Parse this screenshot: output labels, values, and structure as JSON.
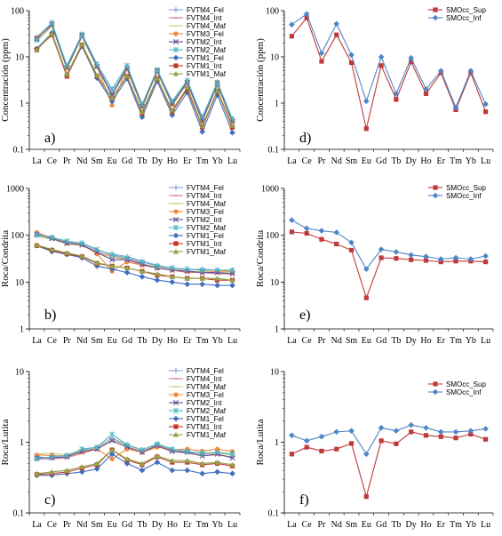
{
  "categories": [
    "La",
    "Ce",
    "Pr",
    "Nd",
    "Sm",
    "Eu",
    "Gd",
    "Tb",
    "Dy",
    "Ho",
    "Er",
    "Tm",
    "Yb",
    "Lu"
  ],
  "colors": {
    "FVTM4_Fel": "#8da7d8",
    "FVTM4_Int": "#d77e7e",
    "FVTM4_Maf": "#c4d08a",
    "FVTM3_Fel": "#f08a3c",
    "FVTM2_Int": "#6a4c9c",
    "FVTM2_Maf": "#4cb7c3",
    "FVTM1_Fel": "#3f6fc0",
    "FVTM1_Int": "#c0392b",
    "FVTM1_Maf": "#8fa64a",
    "SMOcc_Sup": "#c0393b",
    "SMOcc_Inf": "#4f86c6"
  },
  "chart_data": [
    {
      "type": "line",
      "panel_label": "a)",
      "ylabel": "Concentración (ppm)",
      "log_scale": true,
      "ylim": [
        0.1,
        100
      ],
      "yticks": [
        "0.1",
        "1",
        "10",
        "100"
      ],
      "legend_position": "top-right",
      "series": [
        {
          "name": "FVTM4_Fel",
          "marker": "plus",
          "values": [
            27,
            55,
            6.2,
            30,
            6.5,
            1.7,
            6.0,
            0.9,
            5.2,
            1.0,
            3.0,
            0.45,
            2.6,
            0.42
          ]
        },
        {
          "name": "FVTM4_Int",
          "marker": "dash",
          "values": [
            24,
            48,
            5.6,
            28,
            6.0,
            1.5,
            5.5,
            0.8,
            4.8,
            0.95,
            2.8,
            0.42,
            2.5,
            0.4
          ]
        },
        {
          "name": "FVTM4_Maf",
          "marker": "dash",
          "values": [
            22,
            45,
            5.4,
            27,
            5.8,
            1.5,
            5.3,
            0.8,
            4.7,
            0.9,
            2.7,
            0.4,
            2.4,
            0.38
          ]
        },
        {
          "name": "FVTM3_Fel",
          "marker": "circle",
          "values": [
            26,
            52,
            5.8,
            30,
            6.2,
            0.9,
            5.6,
            0.85,
            5.0,
            0.95,
            2.9,
            0.4,
            2.9,
            0.44
          ]
        },
        {
          "name": "FVTM2_Int",
          "marker": "x",
          "values": [
            25,
            50,
            5.8,
            29,
            6.2,
            1.5,
            5.8,
            0.85,
            5.0,
            0.95,
            2.8,
            0.42,
            2.6,
            0.4
          ]
        },
        {
          "name": "FVTM2_Maf",
          "marker": "star",
          "values": [
            23,
            55,
            6.5,
            31,
            7.0,
            2.0,
            6.5,
            0.95,
            5.3,
            1.1,
            3.1,
            0.5,
            2.8,
            0.46
          ]
        },
        {
          "name": "FVTM1_Fel",
          "marker": "diamond",
          "values": [
            15,
            33,
            4.0,
            17,
            3.5,
            1.1,
            3.4,
            0.5,
            3.0,
            0.55,
            1.7,
            0.24,
            1.5,
            0.23
          ]
        },
        {
          "name": "FVTM1_Int",
          "marker": "square",
          "values": [
            14.5,
            30,
            3.8,
            18,
            3.8,
            1.3,
            3.8,
            0.6,
            3.4,
            0.65,
            2.0,
            0.3,
            1.8,
            0.3
          ]
        },
        {
          "name": "FVTM1_Maf",
          "marker": "triangle",
          "values": [
            14,
            32,
            4.2,
            19,
            4.0,
            1.3,
            3.9,
            0.65,
            3.5,
            0.7,
            2.2,
            0.32,
            1.9,
            0.33
          ]
        }
      ]
    },
    {
      "type": "line",
      "panel_label": "d)",
      "ylabel": "Concentración (ppm)",
      "log_scale": true,
      "ylim": [
        0.1,
        100
      ],
      "yticks": [
        "0.1",
        "1",
        "10",
        "100"
      ],
      "legend_position": "top-right",
      "series": [
        {
          "name": "SMOcc_Sup",
          "marker": "square",
          "values": [
            28,
            70,
            8,
            30,
            7.5,
            0.28,
            6.5,
            1.2,
            7.8,
            1.6,
            4.5,
            0.72,
            4.5,
            0.65
          ]
        },
        {
          "name": "SMOcc_Inf",
          "marker": "diamond",
          "values": [
            50,
            85,
            12,
            52,
            11,
            1.1,
            10,
            1.6,
            9.5,
            2.0,
            5.0,
            0.8,
            5.0,
            0.95
          ]
        }
      ]
    },
    {
      "type": "line",
      "panel_label": "b)",
      "ylabel": "Roca/Condrita",
      "log_scale": true,
      "ylim": [
        1,
        1000
      ],
      "yticks": [
        "1",
        "10",
        "100",
        "1000"
      ],
      "legend_position": "top-right",
      "series": [
        {
          "name": "FVTM4_Fel",
          "marker": "plus",
          "values": [
            110,
            90,
            72,
            66,
            48,
            40,
            35,
            28,
            23,
            20,
            18,
            19,
            18,
            17
          ]
        },
        {
          "name": "FVTM4_Int",
          "marker": "dash",
          "values": [
            100,
            85,
            68,
            62,
            44,
            36,
            31,
            25,
            20,
            18,
            16,
            16,
            15,
            15
          ]
        },
        {
          "name": "FVTM4_Maf",
          "marker": "dash",
          "values": [
            95,
            82,
            65,
            60,
            42,
            34,
            30,
            24,
            21,
            19,
            17,
            17,
            16,
            16
          ]
        },
        {
          "name": "FVTM3_Fel",
          "marker": "circle",
          "values": [
            115,
            88,
            68,
            64,
            40,
            17,
            27,
            23,
            20,
            18,
            17,
            16,
            17,
            17
          ]
        },
        {
          "name": "FVTM2_Int",
          "marker": "x",
          "values": [
            105,
            85,
            67,
            62,
            43,
            30,
            30,
            24,
            20,
            18,
            17,
            16,
            16,
            15
          ]
        },
        {
          "name": "FVTM2_Maf",
          "marker": "star",
          "values": [
            100,
            90,
            75,
            68,
            50,
            38,
            33,
            27,
            22,
            20,
            19,
            18,
            18,
            18
          ]
        },
        {
          "name": "FVTM1_Fel",
          "marker": "diamond",
          "values": [
            60,
            45,
            39,
            33,
            22,
            19,
            16,
            13,
            11,
            10,
            9,
            9,
            8.5,
            8.5
          ]
        },
        {
          "name": "FVTM1_Int",
          "marker": "square",
          "values": [
            60,
            48,
            40,
            35,
            25,
            22,
            20,
            17,
            14,
            13,
            12,
            12,
            11,
            11
          ]
        },
        {
          "name": "FVTM1_Maf",
          "marker": "triangle",
          "values": [
            62,
            50,
            42,
            36,
            26,
            22,
            20,
            17,
            15,
            13,
            12,
            12,
            12,
            11
          ]
        }
      ]
    },
    {
      "type": "line",
      "panel_label": "e)",
      "ylabel": "Roca/Condrita",
      "log_scale": true,
      "ylim": [
        1,
        1000
      ],
      "yticks": [
        "1",
        "10",
        "100",
        "1000"
      ],
      "legend_position": "top-right",
      "series": [
        {
          "name": "SMOcc_Sup",
          "marker": "square",
          "values": [
            118,
            110,
            82,
            65,
            48,
            4.6,
            33,
            32,
            30,
            29,
            27,
            28,
            28,
            27
          ]
        },
        {
          "name": "SMOcc_Inf",
          "marker": "diamond",
          "values": [
            210,
            140,
            125,
            115,
            70,
            19,
            50,
            44,
            38,
            35,
            31,
            33,
            31,
            36
          ]
        }
      ]
    },
    {
      "type": "line",
      "panel_label": "c)",
      "ylabel": "Roca/Lutita",
      "log_scale": true,
      "ylim": [
        0.1,
        10
      ],
      "yticks": [
        "0.1",
        "1",
        "10"
      ],
      "legend_position": "top-right",
      "series": [
        {
          "name": "FVTM4_Fel",
          "marker": "plus",
          "values": [
            0.62,
            0.6,
            0.62,
            0.78,
            0.85,
            1.15,
            0.92,
            0.78,
            0.92,
            0.78,
            0.74,
            0.7,
            0.72,
            0.68
          ]
        },
        {
          "name": "FVTM4_Int",
          "marker": "dash",
          "values": [
            0.58,
            0.58,
            0.6,
            0.7,
            0.8,
            1.05,
            0.85,
            0.72,
            0.88,
            0.74,
            0.7,
            0.65,
            0.66,
            0.62
          ]
        },
        {
          "name": "FVTM4_Maf",
          "marker": "dash",
          "values": [
            0.68,
            0.7,
            0.66,
            0.76,
            0.82,
            1.1,
            0.9,
            0.76,
            0.9,
            0.76,
            0.74,
            0.68,
            0.7,
            0.66
          ]
        },
        {
          "name": "FVTM3_Fel",
          "marker": "circle",
          "values": [
            0.66,
            0.65,
            0.64,
            0.72,
            0.8,
            0.58,
            0.8,
            0.72,
            0.85,
            0.78,
            0.8,
            0.75,
            0.8,
            0.74
          ]
        },
        {
          "name": "FVTM2_Int",
          "marker": "x",
          "values": [
            0.6,
            0.6,
            0.62,
            0.74,
            0.8,
            1.05,
            0.86,
            0.72,
            0.9,
            0.74,
            0.72,
            0.64,
            0.68,
            0.6
          ]
        },
        {
          "name": "FVTM2_Maf",
          "marker": "star",
          "values": [
            0.58,
            0.62,
            0.65,
            0.8,
            0.85,
            1.3,
            0.92,
            0.78,
            0.95,
            0.8,
            0.74,
            0.7,
            0.72,
            0.68
          ]
        },
        {
          "name": "FVTM1_Fel",
          "marker": "diamond",
          "values": [
            0.34,
            0.34,
            0.36,
            0.38,
            0.42,
            0.68,
            0.5,
            0.4,
            0.52,
            0.4,
            0.4,
            0.36,
            0.38,
            0.36
          ]
        },
        {
          "name": "FVTM1_Int",
          "marker": "square",
          "values": [
            0.35,
            0.36,
            0.38,
            0.43,
            0.48,
            0.78,
            0.56,
            0.48,
            0.62,
            0.52,
            0.52,
            0.48,
            0.5,
            0.46
          ]
        },
        {
          "name": "FVTM1_Maf",
          "marker": "triangle",
          "values": [
            0.36,
            0.38,
            0.4,
            0.45,
            0.5,
            0.78,
            0.58,
            0.5,
            0.64,
            0.55,
            0.55,
            0.5,
            0.52,
            0.48
          ]
        }
      ]
    },
    {
      "type": "line",
      "panel_label": "f)",
      "ylabel": "Roca/Lutita",
      "log_scale": true,
      "ylim": [
        0.1,
        10
      ],
      "yticks": [
        "0.1",
        "1",
        "10"
      ],
      "legend_position": "top-right",
      "series": [
        {
          "name": "SMOcc_Sup",
          "marker": "square",
          "values": [
            0.68,
            0.85,
            0.75,
            0.8,
            0.96,
            0.17,
            1.05,
            0.95,
            1.4,
            1.25,
            1.2,
            1.15,
            1.3,
            1.1
          ]
        },
        {
          "name": "SMOcc_Inf",
          "marker": "diamond",
          "values": [
            1.25,
            1.05,
            1.2,
            1.4,
            1.45,
            0.68,
            1.6,
            1.45,
            1.75,
            1.6,
            1.4,
            1.4,
            1.45,
            1.55
          ]
        }
      ]
    }
  ]
}
